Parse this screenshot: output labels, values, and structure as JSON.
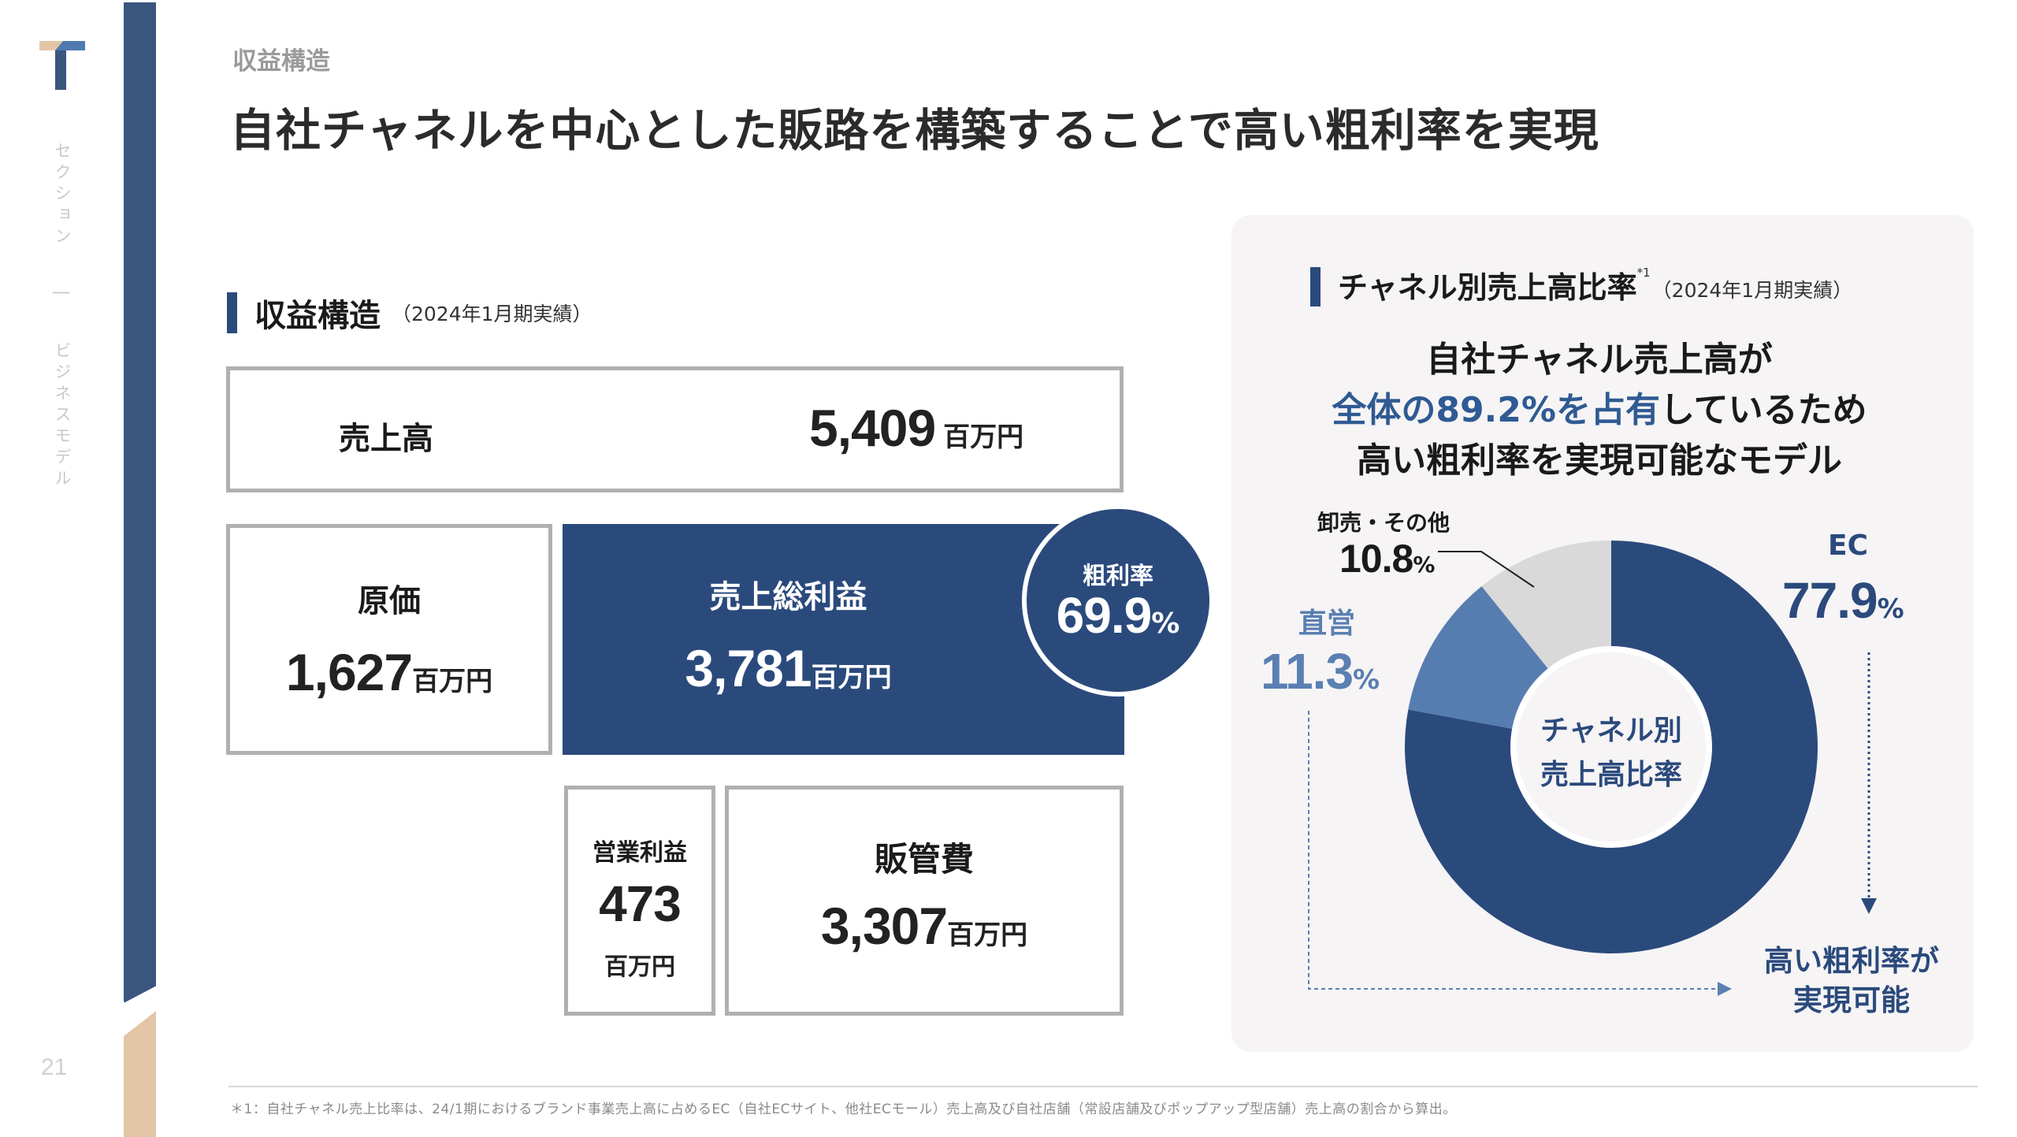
{
  "sidebar": {
    "section_label": "セクション",
    "separator": "|",
    "section_name": "ビジネスモデル",
    "page_number": "21",
    "colors": {
      "navy": "#3a567f",
      "tan": "#e3c6a6",
      "logo_light": "#4f7ab0"
    }
  },
  "header": {
    "eyebrow": "収益構造",
    "title": "自社チャネルを中心とした販路を構築することで高い粗利率を実現"
  },
  "revenue_structure": {
    "heading": "収益構造",
    "period": "（2024年1月期実績）",
    "sales": {
      "label": "売上高",
      "value": "5,409",
      "unit": "百万円"
    },
    "cost": {
      "label": "原価",
      "value": "1,627",
      "unit": "百万円"
    },
    "gross_profit": {
      "label": "売上総利益",
      "value": "3,781",
      "unit": "百万円"
    },
    "gross_margin": {
      "label": "粗利率",
      "value": "69.9",
      "unit": "%"
    },
    "operating_profit": {
      "label": "営業利益",
      "value": "473",
      "unit": "百万円"
    },
    "sga": {
      "label": "販管費",
      "value": "3,307",
      "unit": "百万円"
    },
    "colors": {
      "accent": "#2b4a7c",
      "border": "#b0b0b0"
    }
  },
  "channel_ratio": {
    "heading": "チャネル別売上高比率",
    "footnote_ref": "*1",
    "period": "（2024年1月期実績）",
    "lead_line1": "自社チャネル売上高が",
    "lead_line2_highlight": "全体の89.2%を占有",
    "lead_line2_rest": "しているため",
    "lead_line3": "高い粗利率を実現可能なモデル",
    "center_label_line1": "チャネル別",
    "center_label_line2": "売上高比率",
    "result_line1": "高い粗利率が",
    "result_line2": "実現可能",
    "labels": {
      "ec_name": "EC",
      "ec_value": "77.9",
      "direct_name": "直営",
      "direct_value": "11.3",
      "wholesale_name": "卸売・その他",
      "wholesale_value": "10.8",
      "pct": "%"
    }
  },
  "chart_data": {
    "type": "pie",
    "title": "チャネル別売上高比率",
    "subtitle": "2024年1月期実績",
    "donut": true,
    "categories": [
      "EC",
      "直営",
      "卸売・その他"
    ],
    "values": [
      77.9,
      11.3,
      10.8
    ],
    "unit": "%",
    "colors": [
      "#2b4a7c",
      "#567db0",
      "#d9d9d9"
    ],
    "start": "12 o'clock",
    "direction": "clockwise",
    "center_label": "チャネル別売上高比率"
  },
  "footer": {
    "note": "＊1：自社チャネル売上比率は、24/1期におけるブランド事業売上高に占めるEC（自社ECサイト、他社ECモール）売上高及び自社店舗（常設店舗及びポップアップ型店舗）売上高の割合から算出。"
  }
}
